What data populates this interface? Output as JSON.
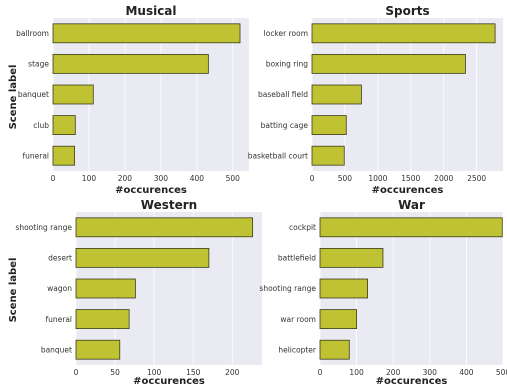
{
  "figure": {
    "ylabel": "Scene label",
    "bar_color": "#bfc232",
    "bar_edge": "#3c3c1e",
    "panel_bg": "#eaeaf2",
    "grid_color": "#ffffff"
  },
  "chart_data": [
    {
      "type": "bar",
      "orientation": "horizontal",
      "title": "Musical",
      "xlabel": "#occurences",
      "categories": [
        "ballroom",
        "stage",
        "banquet",
        "club",
        "funeral"
      ],
      "values": [
        520,
        432,
        112,
        62,
        60
      ],
      "xlim": [
        0,
        545
      ],
      "xticks": [
        0,
        100,
        200,
        300,
        400,
        500
      ],
      "grid": true
    },
    {
      "type": "bar",
      "orientation": "horizontal",
      "title": "Sports",
      "xlabel": "#occurences",
      "categories": [
        "locker room",
        "boxing ring",
        "baseball field",
        "batting cage",
        "basketball court"
      ],
      "values": [
        2780,
        2330,
        750,
        520,
        490
      ],
      "xlim": [
        0,
        2900
      ],
      "xticks": [
        0,
        500,
        1000,
        1500,
        2000,
        2500
      ],
      "grid": true
    },
    {
      "type": "bar",
      "orientation": "horizontal",
      "title": "Western",
      "xlabel": "#occurences",
      "categories": [
        "shooting range",
        "desert",
        "wagon",
        "funeral",
        "banquet"
      ],
      "values": [
        226,
        170,
        76,
        68,
        56
      ],
      "xlim": [
        0,
        238
      ],
      "xticks": [
        0,
        50,
        100,
        150,
        200
      ],
      "grid": true
    },
    {
      "type": "bar",
      "orientation": "horizontal",
      "title": "War",
      "xlabel": "#occurences",
      "categories": [
        "cockpit",
        "battlefield",
        "shooting range",
        "war room",
        "helicopter"
      ],
      "values": [
        498,
        172,
        130,
        100,
        80
      ],
      "xlim": [
        0,
        500
      ],
      "xticks": [
        0,
        100,
        200,
        300,
        400,
        500
      ],
      "grid": true
    }
  ]
}
